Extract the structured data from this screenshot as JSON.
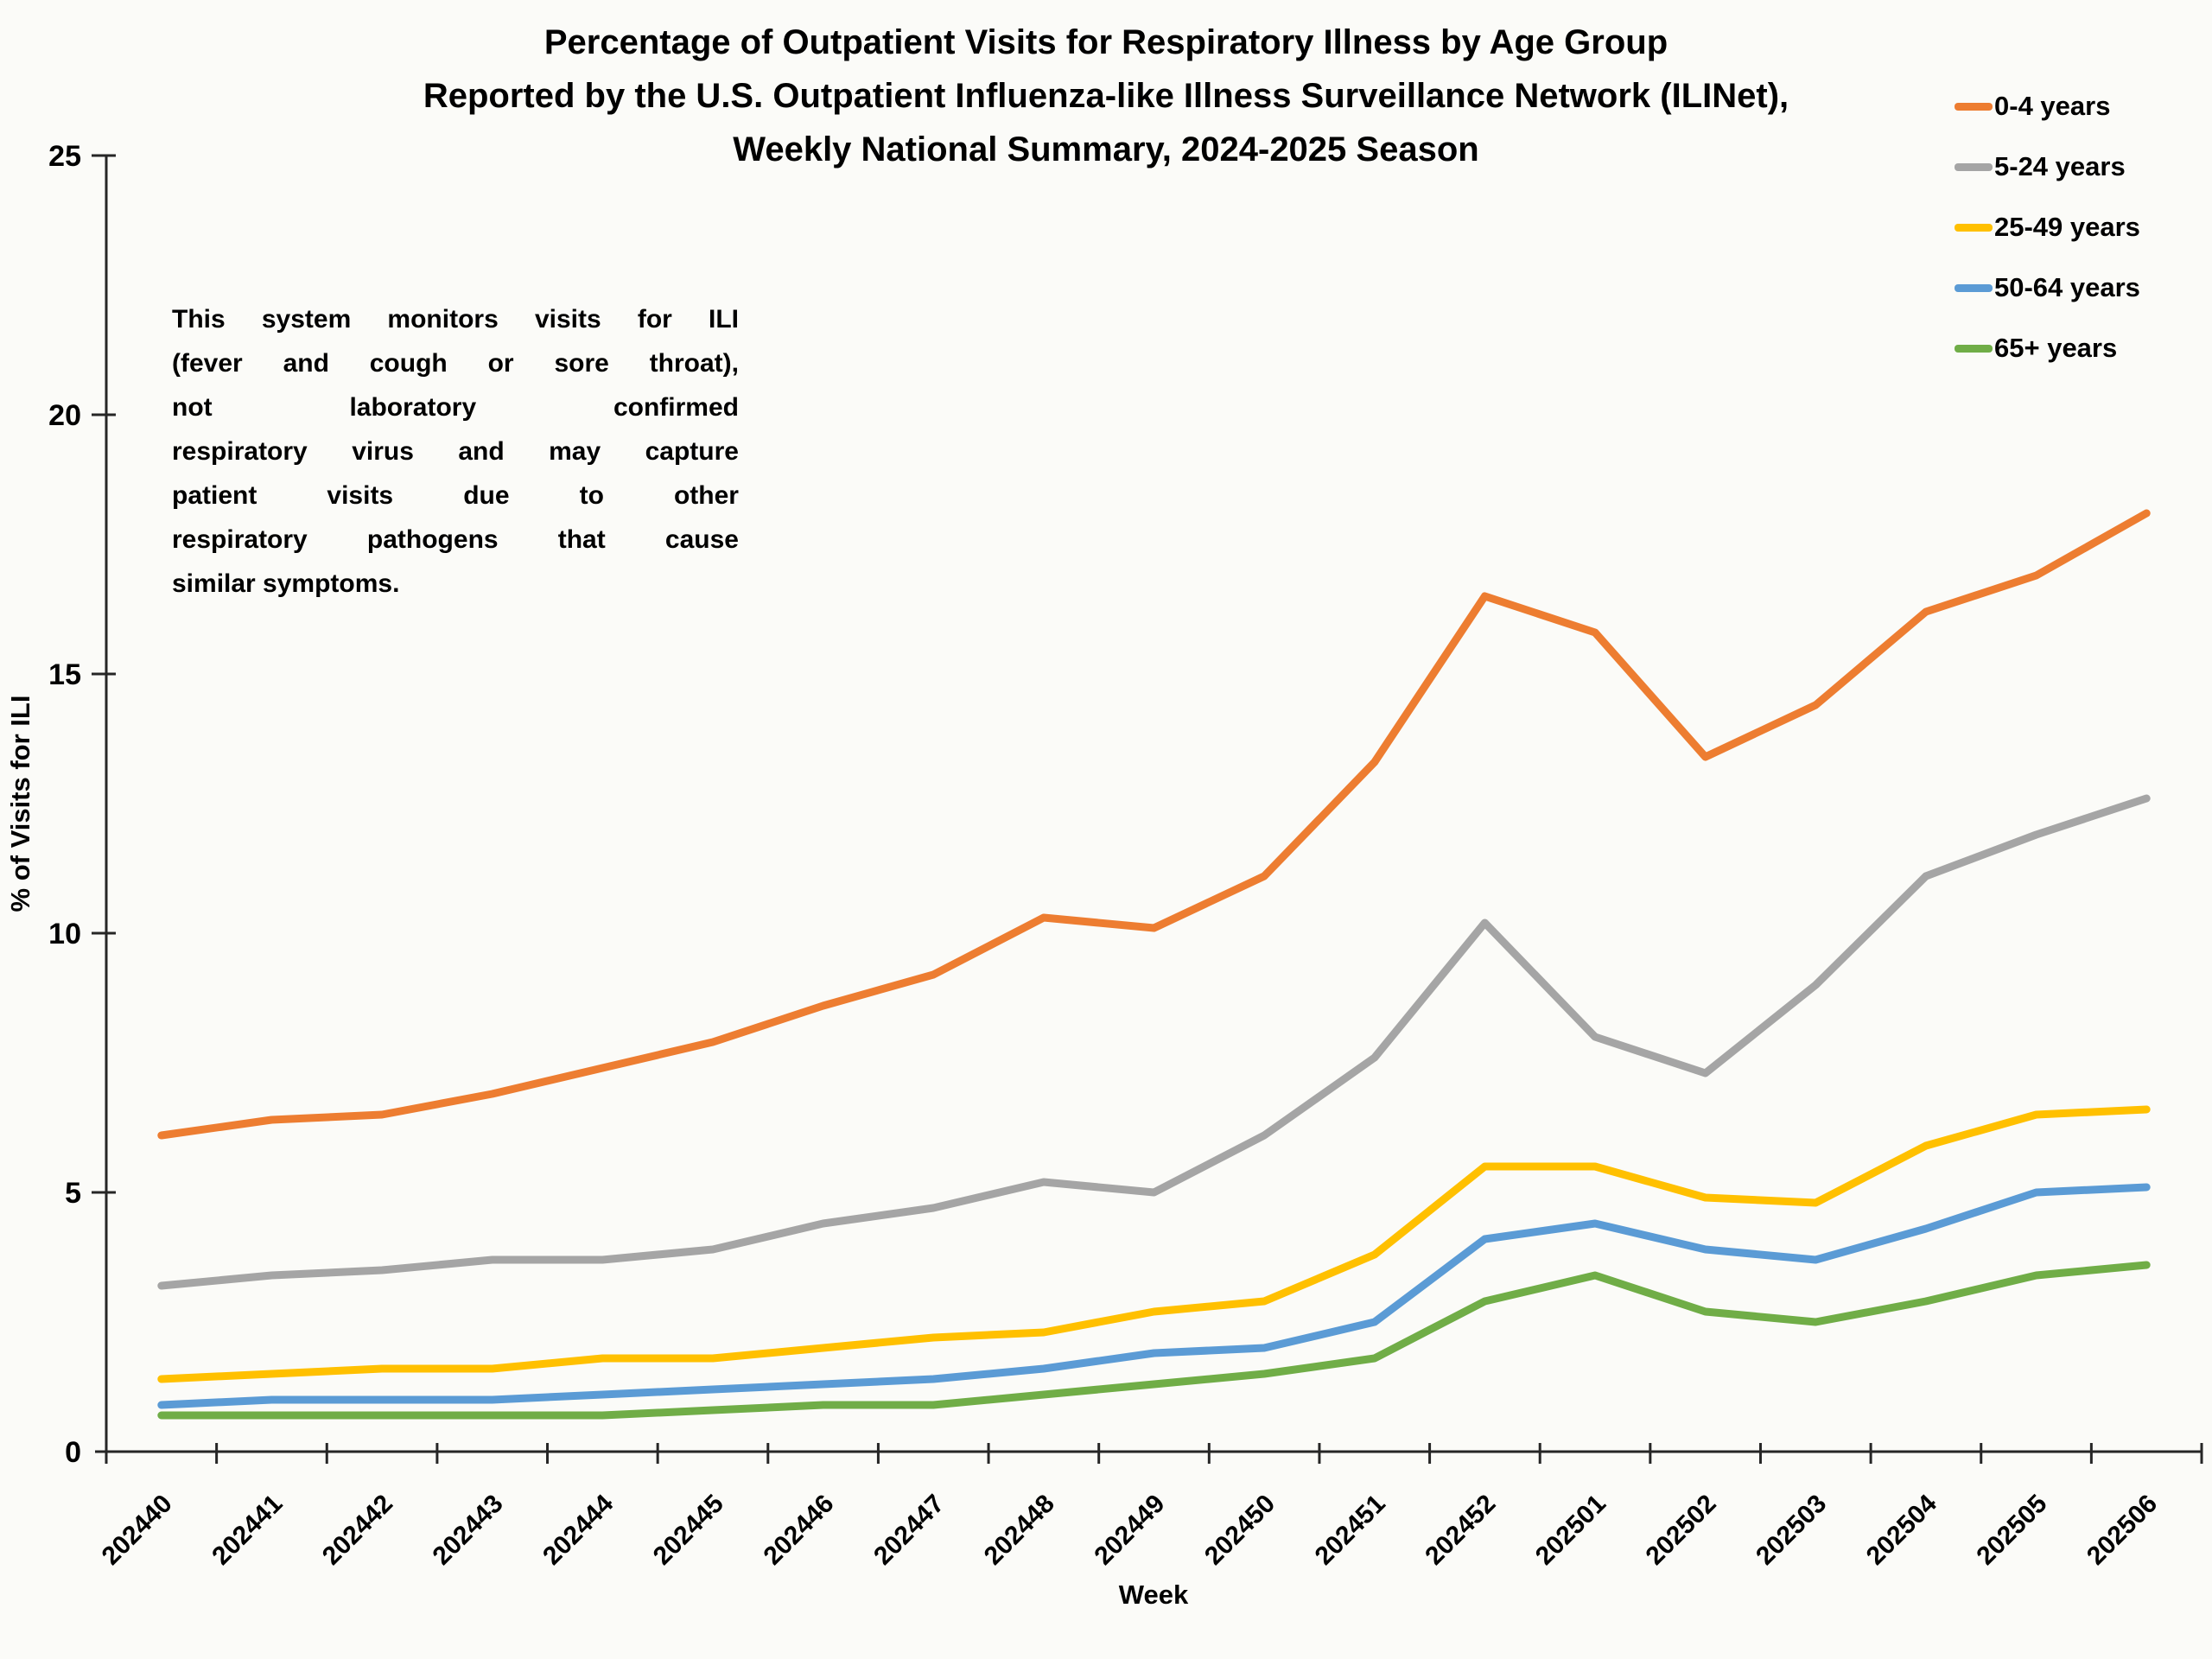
{
  "title": {
    "line1": "Percentage of Outpatient Visits for Respiratory Illness by Age Group",
    "line2": "Reported by the U.S. Outpatient Influenza-like Illness Surveillance Network (ILINet),",
    "line3": "Weekly National Summary, 2024-2025 Season"
  },
  "annotation": {
    "lines": [
      "This system monitors visits for ILI",
      "(fever and cough or sore throat),",
      "not laboratory confirmed",
      "respiratory virus and may capture",
      "patient visits due to other",
      "respiratory pathogens that cause",
      "similar symptoms."
    ]
  },
  "axes": {
    "y_label": "% of Visits for ILI",
    "x_label": "Week",
    "y_ticks": [
      0,
      5,
      10,
      15,
      20,
      25
    ]
  },
  "colors": {
    "axis": "#262626",
    "tick_label": "#000000",
    "x_axis_title": "#595959",
    "background": "#FBFBF8"
  },
  "chart_data": {
    "type": "line",
    "title": "Percentage of Outpatient Visits for Respiratory Illness by Age Group Reported by the U.S. Outpatient Influenza-like Illness Surveillance Network (ILINet), Weekly National Summary, 2024-2025 Season",
    "xlabel": "Week",
    "ylabel": "% of Visits for ILI",
    "ylim": [
      0,
      25
    ],
    "grid": false,
    "legend_position": "top-right",
    "x_tick_rotation": 45,
    "categories": [
      "202440",
      "202441",
      "202442",
      "202443",
      "202444",
      "202445",
      "202446",
      "202447",
      "202448",
      "202449",
      "202450",
      "202451",
      "202452",
      "202501",
      "202502",
      "202503",
      "202504",
      "202505",
      "202506"
    ],
    "series": [
      {
        "name": "0-4 years",
        "color": "#ED7D31",
        "values": [
          6.1,
          6.4,
          6.5,
          6.9,
          7.4,
          7.9,
          8.6,
          9.2,
          10.3,
          10.1,
          11.1,
          13.3,
          16.5,
          15.8,
          13.4,
          14.4,
          16.2,
          16.9,
          18.1
        ]
      },
      {
        "name": "5-24 years",
        "color": "#A5A5A5",
        "values": [
          3.2,
          3.4,
          3.5,
          3.7,
          3.7,
          3.9,
          4.4,
          4.7,
          5.2,
          5.0,
          6.1,
          7.6,
          10.2,
          8.0,
          7.3,
          9.0,
          11.1,
          11.9,
          12.6
        ]
      },
      {
        "name": "25-49 years",
        "color": "#FFC000",
        "values": [
          1.4,
          1.5,
          1.6,
          1.6,
          1.8,
          1.8,
          2.0,
          2.2,
          2.3,
          2.7,
          2.9,
          3.8,
          5.5,
          5.5,
          4.9,
          4.8,
          5.9,
          6.5,
          6.6
        ]
      },
      {
        "name": "50-64 years",
        "color": "#5B9BD5",
        "values": [
          0.9,
          1.0,
          1.0,
          1.0,
          1.1,
          1.2,
          1.3,
          1.4,
          1.6,
          1.9,
          2.0,
          2.5,
          4.1,
          4.4,
          3.9,
          3.7,
          4.3,
          5.0,
          5.1
        ]
      },
      {
        "name": "65+ years",
        "color": "#70AD47",
        "values": [
          0.7,
          0.7,
          0.7,
          0.7,
          0.7,
          0.8,
          0.9,
          0.9,
          1.1,
          1.3,
          1.5,
          1.8,
          2.9,
          3.4,
          2.7,
          2.5,
          2.9,
          3.4,
          3.6
        ]
      }
    ]
  }
}
